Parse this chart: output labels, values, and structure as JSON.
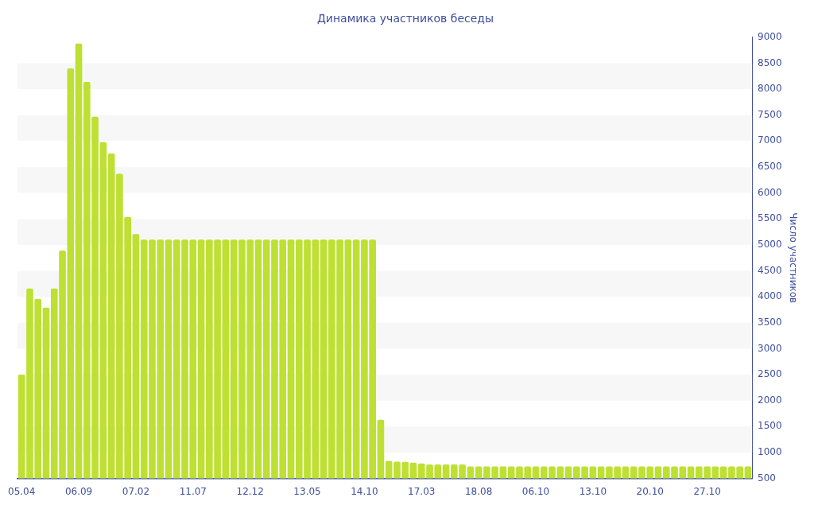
{
  "chart_data": {
    "type": "bar",
    "title": "Динамика участников беседы",
    "ylabel": "Число участников",
    "categories": [
      "05.04",
      null,
      null,
      null,
      null,
      null,
      null,
      "06.09",
      null,
      null,
      null,
      null,
      null,
      null,
      "07.02",
      null,
      null,
      null,
      null,
      null,
      null,
      "11.07",
      null,
      null,
      null,
      null,
      null,
      null,
      "12.12",
      null,
      null,
      null,
      null,
      null,
      null,
      "13.05",
      null,
      null,
      null,
      null,
      null,
      null,
      "14.10",
      null,
      null,
      null,
      null,
      null,
      null,
      "17.03",
      null,
      null,
      null,
      null,
      null,
      null,
      "18.08",
      null,
      null,
      null,
      null,
      null,
      null,
      "06.10",
      null,
      null,
      null,
      null,
      null,
      null,
      "13.10",
      null,
      null,
      null,
      null,
      null,
      null,
      "20.10",
      null,
      null,
      null,
      null,
      null,
      null,
      "27.10",
      null,
      null,
      null,
      null,
      null
    ],
    "values": [
      2500,
      4160,
      3960,
      3790,
      4160,
      4890,
      8400,
      8880,
      8140,
      7470,
      6980,
      6760,
      6370,
      5540,
      5210,
      5100,
      5100,
      5100,
      5100,
      5100,
      5100,
      5100,
      5100,
      5100,
      5100,
      5100,
      5100,
      5100,
      5100,
      5100,
      5100,
      5100,
      5100,
      5100,
      5100,
      5100,
      5100,
      5100,
      5100,
      5100,
      5100,
      5100,
      5100,
      5100,
      1630,
      840,
      825,
      820,
      805,
      790,
      770,
      770,
      770,
      770,
      770,
      730,
      730,
      730,
      730,
      730,
      730,
      730,
      730,
      730,
      730,
      730,
      730,
      730,
      730,
      730,
      730,
      730,
      730,
      730,
      730,
      730,
      730,
      730,
      730,
      730,
      730,
      730,
      730,
      730,
      730,
      730,
      730,
      730,
      730,
      730
    ],
    "color": "#bde032",
    "ylim": [
      500,
      9000
    ],
    "yticks": [
      500,
      1000,
      1500,
      2000,
      2500,
      3000,
      3500,
      4000,
      4500,
      5000,
      5500,
      6000,
      6500,
      7000,
      7500,
      8000,
      8500,
      9000
    ],
    "bands": [
      {
        "axis": "y",
        "from": 1000,
        "to": 1500,
        "color": "#f7f7f7"
      },
      {
        "axis": "y",
        "from": 2000,
        "to": 2500,
        "color": "#f7f7f7"
      },
      {
        "axis": "y",
        "from": 3000,
        "to": 3500,
        "color": "#f7f7f7"
      },
      {
        "axis": "y",
        "from": 4000,
        "to": 4500,
        "color": "#f7f7f7"
      },
      {
        "axis": "y",
        "from": 5000,
        "to": 5500,
        "color": "#f7f7f7"
      },
      {
        "axis": "y",
        "from": 6000,
        "to": 6500,
        "color": "#f7f7f7"
      },
      {
        "axis": "y",
        "from": 7000,
        "to": 7500,
        "color": "#f7f7f7"
      },
      {
        "axis": "y",
        "from": 8000,
        "to": 8500,
        "color": "#f7f7f7"
      }
    ],
    "grid": false,
    "legend": false
  }
}
